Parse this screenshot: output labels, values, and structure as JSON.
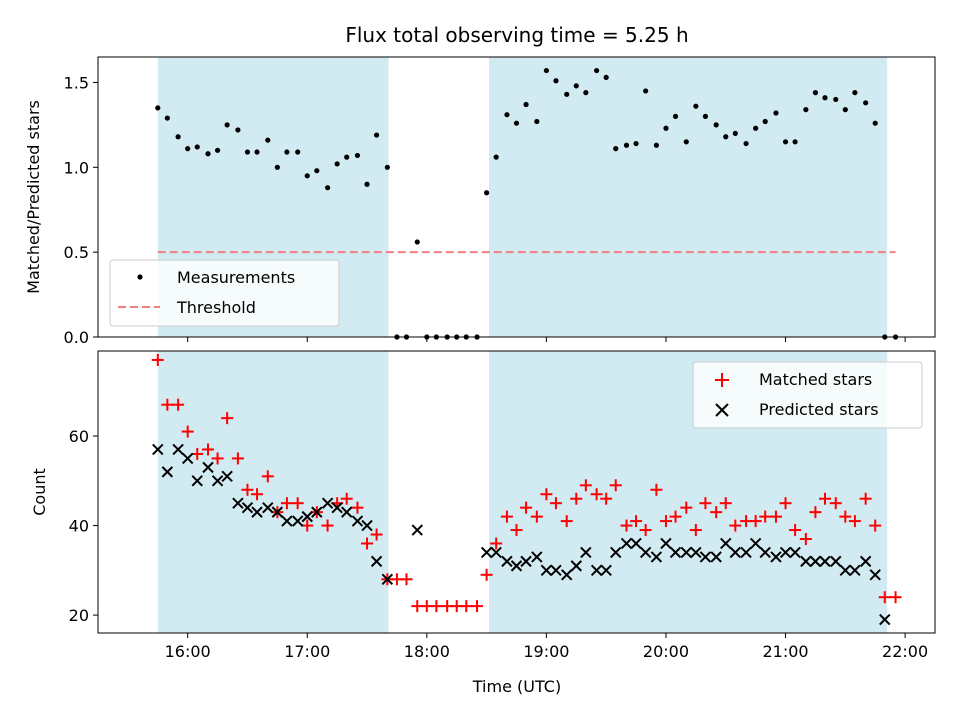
{
  "chart_data": {
    "title": "Flux total observing time = 5.25 h",
    "xlabel": "Time (UTC)",
    "x_tick_labels": [
      "16:00",
      "17:00",
      "18:00",
      "19:00",
      "20:00",
      "21:00",
      "22:00"
    ],
    "x_tick_hours": [
      16,
      17,
      18,
      19,
      20,
      21,
      22
    ],
    "xlim_hours": [
      15.25,
      22.25
    ],
    "shaded_intervals_hours": [
      [
        15.75,
        17.68
      ],
      [
        18.52,
        21.85
      ]
    ],
    "colors": {
      "shade": "#add8e6",
      "threshold": "#f08080",
      "matched": "#ff0000",
      "predicted": "#000000",
      "measurements": "#000000"
    },
    "panels": [
      {
        "type": "scatter",
        "ylabel": "Matched/Predicted stars",
        "ylim": [
          0,
          1.65
        ],
        "y_ticks": [
          0.0,
          0.5,
          1.0,
          1.5
        ],
        "y_tick_labels": [
          "0.0",
          "0.5",
          "1.0",
          "1.5"
        ],
        "threshold": 0.5,
        "threshold_x_hours": [
          15.75,
          21.92
        ],
        "legend": {
          "position": "lower-left",
          "entries": [
            "Measurements",
            "Threshold"
          ]
        },
        "series": [
          {
            "name": "Measurements",
            "x": [
              15.75,
              15.83,
              15.92,
              16.0,
              16.08,
              16.17,
              16.25,
              16.33,
              16.42,
              16.5,
              16.58,
              16.67,
              16.75,
              16.83,
              16.92,
              17.0,
              17.08,
              17.17,
              17.25,
              17.33,
              17.42,
              17.5,
              17.58,
              17.67,
              17.75,
              17.83,
              17.92,
              18.0,
              18.08,
              18.17,
              18.25,
              18.33,
              18.42,
              18.5,
              18.58,
              18.67,
              18.75,
              18.83,
              18.92,
              19.0,
              19.08,
              19.17,
              19.25,
              19.33,
              19.42,
              19.5,
              19.58,
              19.67,
              19.75,
              19.83,
              19.92,
              20.0,
              20.08,
              20.17,
              20.25,
              20.33,
              20.42,
              20.5,
              20.58,
              20.67,
              20.75,
              20.83,
              20.92,
              21.0,
              21.08,
              21.17,
              21.25,
              21.33,
              21.42,
              21.5,
              21.58,
              21.67,
              21.75,
              21.83,
              21.92
            ],
            "y": [
              1.35,
              1.29,
              1.18,
              1.11,
              1.12,
              1.08,
              1.1,
              1.25,
              1.22,
              1.09,
              1.09,
              1.16,
              1.0,
              1.09,
              1.09,
              0.95,
              0.98,
              0.88,
              1.02,
              1.06,
              1.07,
              0.9,
              1.19,
              1.0,
              0.0,
              0.0,
              0.56,
              0.0,
              0.0,
              0.0,
              0.0,
              0.0,
              0.0,
              0.85,
              1.06,
              1.31,
              1.26,
              1.37,
              1.27,
              1.57,
              1.51,
              1.43,
              1.48,
              1.44,
              1.57,
              1.53,
              1.11,
              1.13,
              1.14,
              1.45,
              1.13,
              1.23,
              1.3,
              1.15,
              1.36,
              1.3,
              1.25,
              1.18,
              1.2,
              1.14,
              1.23,
              1.27,
              1.32,
              1.15,
              1.15,
              1.34,
              1.44,
              1.41,
              1.4,
              1.34,
              1.44,
              1.38,
              1.26,
              0.0,
              0.0
            ]
          }
        ]
      },
      {
        "type": "scatter",
        "ylabel": "Count",
        "ylim": [
          16,
          79
        ],
        "y_ticks": [
          20,
          40,
          60
        ],
        "y_tick_labels": [
          "20",
          "40",
          "60"
        ],
        "legend": {
          "position": "upper-right",
          "entries": [
            "Matched stars",
            "Predicted stars"
          ]
        },
        "series": [
          {
            "name": "Matched stars",
            "marker": "+",
            "x": [
              15.75,
              15.83,
              15.92,
              16.0,
              16.08,
              16.17,
              16.25,
              16.33,
              16.42,
              16.5,
              16.58,
              16.67,
              16.75,
              16.83,
              16.92,
              17.0,
              17.08,
              17.17,
              17.25,
              17.33,
              17.42,
              17.5,
              17.58,
              17.67,
              17.75,
              17.83,
              17.92,
              18.0,
              18.08,
              18.17,
              18.25,
              18.33,
              18.42,
              18.5,
              18.58,
              18.67,
              18.75,
              18.83,
              18.92,
              19.0,
              19.08,
              19.17,
              19.25,
              19.33,
              19.42,
              19.5,
              19.58,
              19.67,
              19.75,
              19.83,
              19.92,
              20.0,
              20.08,
              20.17,
              20.25,
              20.33,
              20.42,
              20.5,
              20.58,
              20.67,
              20.75,
              20.83,
              20.92,
              21.0,
              21.08,
              21.17,
              21.25,
              21.33,
              21.42,
              21.5,
              21.58,
              21.67,
              21.75,
              21.83,
              21.92
            ],
            "y": [
              77,
              67,
              67,
              61,
              56,
              57,
              55,
              64,
              55,
              48,
              47,
              51,
              43,
              45,
              45,
              40,
              43,
              40,
              45,
              46,
              44,
              36,
              38,
              28,
              28,
              28,
              22,
              22,
              22,
              22,
              22,
              22,
              22,
              29,
              36,
              42,
              39,
              44,
              42,
              47,
              45,
              41,
              46,
              49,
              47,
              46,
              49,
              40,
              41,
              39,
              48,
              41,
              42,
              44,
              39,
              45,
              43,
              45,
              40,
              41,
              41,
              42,
              42,
              45,
              39,
              37,
              43,
              46,
              45,
              42,
              41,
              46,
              40,
              24,
              24
            ]
          },
          {
            "name": "Predicted stars",
            "marker": "x",
            "x": [
              15.75,
              15.83,
              15.92,
              16.0,
              16.08,
              16.17,
              16.25,
              16.33,
              16.42,
              16.5,
              16.58,
              16.67,
              16.75,
              16.83,
              16.92,
              17.0,
              17.08,
              17.17,
              17.25,
              17.33,
              17.42,
              17.5,
              17.58,
              17.67,
              17.92,
              18.5,
              18.58,
              18.67,
              18.75,
              18.83,
              18.92,
              19.0,
              19.08,
              19.17,
              19.25,
              19.33,
              19.42,
              19.5,
              19.58,
              19.67,
              19.75,
              19.83,
              19.92,
              20.0,
              20.08,
              20.17,
              20.25,
              20.33,
              20.42,
              20.5,
              20.58,
              20.67,
              20.75,
              20.83,
              20.92,
              21.0,
              21.08,
              21.17,
              21.25,
              21.33,
              21.42,
              21.5,
              21.58,
              21.67,
              21.75,
              21.83
            ],
            "y": [
              57,
              52,
              57,
              55,
              50,
              53,
              50,
              51,
              45,
              44,
              43,
              44,
              43,
              41,
              41,
              42,
              43,
              45,
              44,
              43,
              41,
              40,
              32,
              28,
              39,
              34,
              34,
              32,
              31,
              32,
              33,
              30,
              30,
              29,
              31,
              34,
              30,
              30,
              34,
              36,
              36,
              34,
              33,
              36,
              34,
              34,
              34,
              33,
              33,
              36,
              34,
              34,
              36,
              34,
              33,
              34,
              34,
              32,
              32,
              32,
              32,
              30,
              30,
              32,
              29,
              19
            ]
          }
        ]
      }
    ]
  }
}
